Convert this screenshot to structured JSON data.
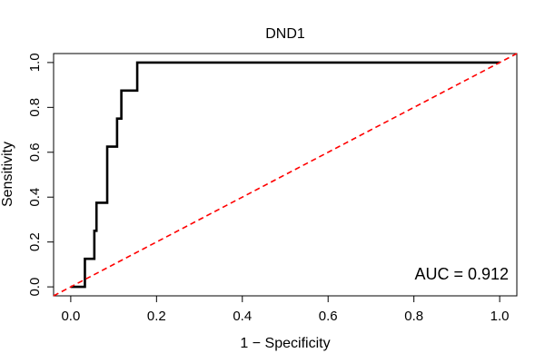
{
  "chart_data": {
    "type": "line",
    "title": "DND1",
    "xlabel": "1 − Specificity",
    "ylabel": "Sensitivity",
    "xlim": [
      -0.04,
      1.04
    ],
    "ylim": [
      -0.04,
      1.04
    ],
    "xticks": [
      {
        "value": 0.0,
        "label": "0.0"
      },
      {
        "value": 0.2,
        "label": "0.2"
      },
      {
        "value": 0.4,
        "label": "0.4"
      },
      {
        "value": 0.6,
        "label": "0.6"
      },
      {
        "value": 0.8,
        "label": "0.8"
      },
      {
        "value": 1.0,
        "label": "1.0"
      }
    ],
    "yticks": [
      {
        "value": 0.0,
        "label": "0.0"
      },
      {
        "value": 0.2,
        "label": "0.2"
      },
      {
        "value": 0.4,
        "label": "0.4"
      },
      {
        "value": 0.6,
        "label": "0.6"
      },
      {
        "value": 0.8,
        "label": "0.8"
      },
      {
        "value": 1.0,
        "label": "1.0"
      }
    ],
    "grid": false,
    "series": [
      {
        "name": "ROC curve",
        "color": "#000000",
        "style": "solid",
        "step": true,
        "x": [
          0.0,
          0.033,
          0.033,
          0.055,
          0.055,
          0.06,
          0.06,
          0.085,
          0.085,
          0.108,
          0.108,
          0.118,
          0.118,
          0.155,
          0.155,
          1.0
        ],
        "y": [
          0.0,
          0.0,
          0.125,
          0.125,
          0.25,
          0.25,
          0.375,
          0.375,
          0.625,
          0.625,
          0.75,
          0.75,
          0.875,
          0.875,
          1.0,
          1.0
        ]
      },
      {
        "name": "Reference line",
        "color": "#ff0000",
        "style": "dashed",
        "x": [
          -0.04,
          1.04
        ],
        "y": [
          -0.04,
          1.04
        ]
      }
    ],
    "annotations": [
      {
        "text": "AUC = 0.912",
        "position": "bottom-right"
      }
    ]
  }
}
